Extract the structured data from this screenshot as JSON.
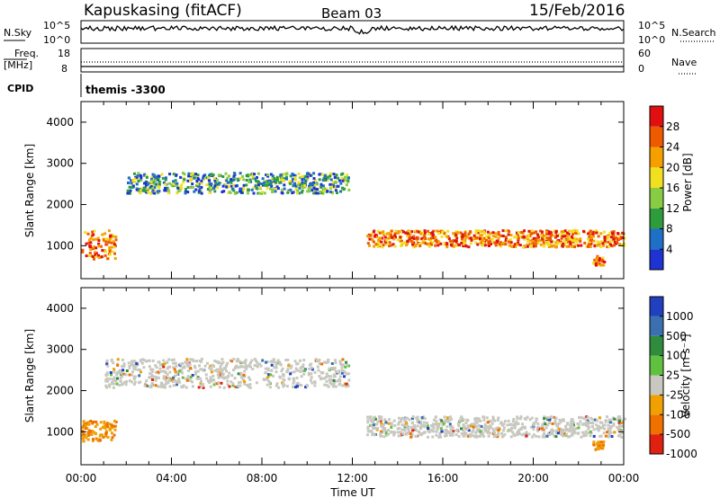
{
  "header": {
    "station": "Kapuskasing (fitACF)",
    "beam": "Beam 03",
    "date": "15/Feb/2016"
  },
  "noise_panel": {
    "left_label": "N.Sky",
    "left_ticks": [
      "10^5",
      "10^0"
    ],
    "right_label": "N.Search",
    "right_ticks": [
      "10^5",
      "10^0"
    ]
  },
  "freq_panel": {
    "left_label_1": "Freq.",
    "left_label_2": "[MHz]",
    "left_ticks": [
      "18",
      "8"
    ],
    "right_label": "Nave",
    "right_ticks": [
      "60",
      "0"
    ]
  },
  "cpid": {
    "label": "CPID",
    "value": "themis -3300"
  },
  "chart_data": [
    {
      "type": "heatmap",
      "name": "power",
      "ylabel": "Slant Range [km]",
      "yticks": [
        1000,
        2000,
        3000,
        4000
      ],
      "ylim": [
        200,
        4500
      ],
      "xlim": [
        0,
        24
      ],
      "colorbar": {
        "label": "Power [dB]",
        "ticks": [
          "28",
          "24",
          "20",
          "16",
          "12",
          "8",
          "4"
        ],
        "range": [
          0,
          30
        ],
        "colors": [
          "#1f32d2",
          "#1e6fc6",
          "#2e9c3c",
          "#88cc44",
          "#f0e020",
          "#f5a000",
          "#ee5a00",
          "#e01010"
        ]
      },
      "regions": [
        {
          "t": [
            0.0,
            1.5
          ],
          "range_km": [
            700,
            1400
          ],
          "level": "high"
        },
        {
          "t": [
            2.0,
            11.8
          ],
          "range_km": [
            2300,
            2800
          ],
          "level": "medium"
        },
        {
          "t": [
            12.6,
            24.0
          ],
          "range_km": [
            1000,
            1400
          ],
          "level": "high"
        },
        {
          "t": [
            22.6,
            23.1
          ],
          "range_km": [
            550,
            800
          ],
          "level": "high"
        }
      ]
    },
    {
      "type": "heatmap",
      "name": "velocity",
      "ylabel": "Slant Range [km]",
      "yticks": [
        1000,
        2000,
        3000,
        4000
      ],
      "ylim": [
        200,
        4500
      ],
      "xlim": [
        0,
        24
      ],
      "colorbar": {
        "label": "Velocity [m s⁻¹]",
        "ticks": [
          "1000",
          "500",
          "100",
          "25",
          "-25",
          "-100",
          "-500",
          "-1000"
        ],
        "colors": [
          "#2040c0",
          "#3a70b0",
          "#2e8c3c",
          "#60c040",
          "#c8c8c0",
          "#f0a000",
          "#f07000",
          "#e02010"
        ]
      },
      "regions": [
        {
          "t": [
            0.0,
            1.5
          ],
          "range_km": [
            800,
            1300
          ],
          "level": "negative"
        },
        {
          "t": [
            1.0,
            11.8
          ],
          "range_km": [
            2100,
            2800
          ],
          "level": "near-zero"
        },
        {
          "t": [
            12.6,
            24.0
          ],
          "range_km": [
            900,
            1400
          ],
          "level": "near-zero"
        },
        {
          "t": [
            22.6,
            23.1
          ],
          "range_km": [
            600,
            800
          ],
          "level": "negative"
        }
      ]
    }
  ],
  "x_axis": {
    "ticks": [
      "00:00",
      "04:00",
      "08:00",
      "12:00",
      "16:00",
      "20:00",
      "00:00"
    ],
    "label": "Time UT"
  }
}
